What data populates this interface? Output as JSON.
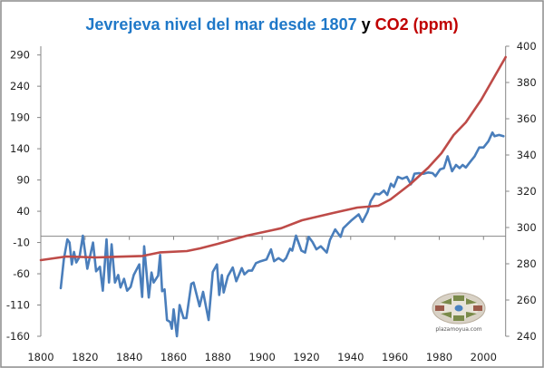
{
  "chart_data": {
    "type": "line",
    "title": {
      "part1": "Jevrejeva nivel del mar desde 1807",
      "part2": " y ",
      "part3": "CO2 (ppm)"
    },
    "xlabel": "",
    "xlim": [
      1800,
      2010
    ],
    "x_ticks": [
      "1800",
      "1820",
      "1840",
      "1860",
      "1880",
      "1900",
      "1920",
      "1940",
      "1960",
      "1980",
      "2000"
    ],
    "y_left": {
      "label": "",
      "ylim": [
        -160,
        304
      ],
      "ticks": [
        "290",
        "240",
        "190",
        "140",
        "90",
        "40",
        "-10",
        "-60",
        "-110",
        "-160"
      ]
    },
    "y_right": {
      "label": "",
      "ylim": [
        240,
        400
      ],
      "ticks": [
        "400",
        "380",
        "360",
        "340",
        "320",
        "300",
        "280",
        "260",
        "240"
      ]
    },
    "grid": false,
    "legend": "none",
    "series": [
      {
        "name": "Jevrejeva nivel del mar",
        "axis": "left",
        "color": "#4A7EBB",
        "points": [
          [
            1809,
            -83
          ],
          [
            1810.4,
            -37
          ],
          [
            1812,
            -5
          ],
          [
            1813,
            -10
          ],
          [
            1814,
            -45
          ],
          [
            1815,
            -25
          ],
          [
            1816,
            -42
          ],
          [
            1817.5,
            -33
          ],
          [
            1819,
            1
          ],
          [
            1821,
            -52
          ],
          [
            1823.6,
            -10
          ],
          [
            1825,
            -56
          ],
          [
            1826.7,
            -49
          ],
          [
            1828,
            -87
          ],
          [
            1829.7,
            -5
          ],
          [
            1830.8,
            -74
          ],
          [
            1832,
            -13
          ],
          [
            1833.5,
            -74
          ],
          [
            1835,
            -62
          ],
          [
            1836,
            -82
          ],
          [
            1837.6,
            -68
          ],
          [
            1839,
            -87
          ],
          [
            1840.6,
            -81
          ],
          [
            1842,
            -62
          ],
          [
            1844.5,
            -45
          ],
          [
            1845.8,
            -97
          ],
          [
            1846.7,
            -16
          ],
          [
            1848.8,
            -98
          ],
          [
            1850,
            -58
          ],
          [
            1851,
            -74
          ],
          [
            1853,
            -63
          ],
          [
            1853.9,
            -30
          ],
          [
            1854.8,
            -88
          ],
          [
            1855.9,
            -85
          ],
          [
            1857,
            -134
          ],
          [
            1858.4,
            -137
          ],
          [
            1859.2,
            -148
          ],
          [
            1860,
            -117
          ],
          [
            1861.5,
            -160
          ],
          [
            1862.7,
            -110
          ],
          [
            1864.5,
            -131
          ],
          [
            1865.8,
            -131
          ],
          [
            1868,
            -76
          ],
          [
            1869,
            -74
          ],
          [
            1870,
            -88
          ],
          [
            1871.7,
            -112
          ],
          [
            1873.3,
            -89
          ],
          [
            1875.8,
            -134
          ],
          [
            1877.7,
            -57
          ],
          [
            1879.6,
            -45
          ],
          [
            1880.6,
            -94
          ],
          [
            1881.8,
            -62
          ],
          [
            1882.6,
            -90
          ],
          [
            1884.5,
            -64
          ],
          [
            1886.7,
            -50
          ],
          [
            1888.3,
            -72
          ],
          [
            1890.8,
            -51
          ],
          [
            1892,
            -61
          ],
          [
            1893.8,
            -55
          ],
          [
            1895.4,
            -55
          ],
          [
            1897.2,
            -43
          ],
          [
            1899.3,
            -40
          ],
          [
            1902,
            -37
          ],
          [
            1904,
            -21
          ],
          [
            1905.4,
            -40
          ],
          [
            1907.4,
            -35
          ],
          [
            1909.5,
            -40
          ],
          [
            1910.8,
            -35
          ],
          [
            1912.6,
            -20
          ],
          [
            1913.6,
            -23
          ],
          [
            1915.3,
            1
          ],
          [
            1917.7,
            -23
          ],
          [
            1919.4,
            -26
          ],
          [
            1921,
            -1
          ],
          [
            1922.7,
            -9
          ],
          [
            1924.5,
            -21
          ],
          [
            1926.5,
            -16
          ],
          [
            1929.2,
            -26
          ],
          [
            1930.6,
            -6
          ],
          [
            1933,
            11
          ],
          [
            1935.4,
            -1
          ],
          [
            1936.7,
            13
          ],
          [
            1940.2,
            25
          ],
          [
            1943.6,
            35
          ],
          [
            1945.3,
            23
          ],
          [
            1947.6,
            39
          ],
          [
            1949,
            56
          ],
          [
            1951,
            68
          ],
          [
            1953,
            67
          ],
          [
            1955,
            73
          ],
          [
            1956.5,
            66
          ],
          [
            1958.2,
            84
          ],
          [
            1959.5,
            79
          ],
          [
            1961.3,
            95
          ],
          [
            1963.3,
            92
          ],
          [
            1965.4,
            95
          ],
          [
            1967.2,
            83
          ],
          [
            1968.8,
            100
          ],
          [
            1970.8,
            101
          ],
          [
            1972.9,
            100
          ],
          [
            1975,
            102
          ],
          [
            1977,
            101
          ],
          [
            1978.3,
            96
          ],
          [
            1980.4,
            107
          ],
          [
            1982.1,
            109
          ],
          [
            1983.8,
            128
          ],
          [
            1985.8,
            104
          ],
          [
            1987.6,
            114
          ],
          [
            1989.2,
            109
          ],
          [
            1990.6,
            114
          ],
          [
            1992,
            110
          ],
          [
            1994,
            119
          ],
          [
            1996,
            128
          ],
          [
            1998.1,
            142
          ],
          [
            2000,
            142
          ],
          [
            2002.2,
            152
          ],
          [
            2004,
            166
          ],
          [
            2005,
            160
          ],
          [
            2007,
            162
          ],
          [
            2009,
            160
          ]
        ]
      },
      {
        "name": "CO2 (ppm)",
        "axis": "right",
        "color": "#BE4B48",
        "points": [
          [
            1800,
            282
          ],
          [
            1811.5,
            284
          ],
          [
            1825,
            283.5
          ],
          [
            1846,
            284.3
          ],
          [
            1854,
            286.3
          ],
          [
            1866,
            287
          ],
          [
            1872,
            288.5
          ],
          [
            1880,
            291
          ],
          [
            1893,
            295.5
          ],
          [
            1904.5,
            298.5
          ],
          [
            1908.6,
            299.6
          ],
          [
            1918,
            304
          ],
          [
            1932,
            308
          ],
          [
            1943,
            311
          ],
          [
            1952.5,
            312
          ],
          [
            1958,
            315.5
          ],
          [
            1967,
            324
          ],
          [
            1975,
            333
          ],
          [
            1981,
            341
          ],
          [
            1986.5,
            351
          ],
          [
            1992,
            358
          ],
          [
            1999,
            370.5
          ],
          [
            2010,
            394
          ]
        ]
      }
    ]
  },
  "colors": {
    "title_blue": "#1F78C8",
    "title_black": "#000000",
    "title_red": "#C00000",
    "axis": "#868686",
    "border": "#8C8C8C"
  },
  "logo": {
    "text": "plazamoyua.com"
  }
}
